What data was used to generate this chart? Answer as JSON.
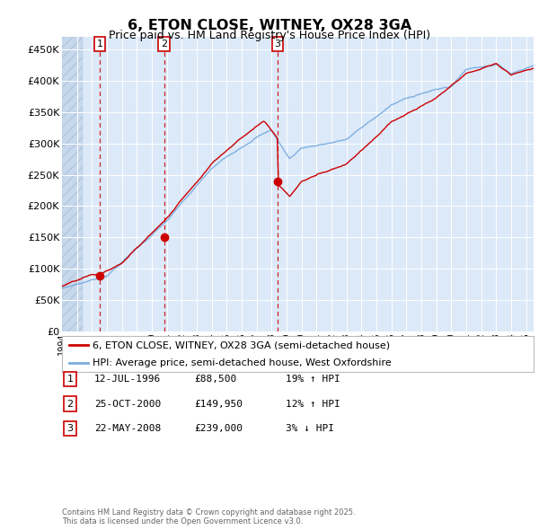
{
  "title": "6, ETON CLOSE, WITNEY, OX28 3GA",
  "subtitle": "Price paid vs. HM Land Registry's House Price Index (HPI)",
  "ylim": [
    0,
    470000
  ],
  "yticks": [
    0,
    50000,
    100000,
    150000,
    200000,
    250000,
    300000,
    350000,
    400000,
    450000
  ],
  "ytick_labels": [
    "£0",
    "£50K",
    "£100K",
    "£150K",
    "£200K",
    "£250K",
    "£300K",
    "£350K",
    "£400K",
    "£450K"
  ],
  "xmin": 1994.0,
  "xmax": 2025.5,
  "background_color": "#dce9f8",
  "hatch_color": "#c8d8ec",
  "grid_color": "#ffffff",
  "sale1_x": 1996.53,
  "sale1_y": 88500,
  "sale2_x": 2000.82,
  "sale2_y": 149950,
  "sale3_x": 2008.39,
  "sale3_y": 239000,
  "hpi_color": "#7aade0",
  "price_color": "#cc0000",
  "legend_label1": "6, ETON CLOSE, WITNEY, OX28 3GA (semi-detached house)",
  "legend_label2": "HPI: Average price, semi-detached house, West Oxfordshire",
  "table_rows": [
    [
      "1",
      "12-JUL-1996",
      "£88,500",
      "19% ↑ HPI"
    ],
    [
      "2",
      "25-OCT-2000",
      "£149,950",
      "12% ↑ HPI"
    ],
    [
      "3",
      "22-MAY-2008",
      "£239,000",
      "3% ↓ HPI"
    ]
  ],
  "footnote": "Contains HM Land Registry data © Crown copyright and database right 2025.\nThis data is licensed under the Open Government Licence v3.0."
}
